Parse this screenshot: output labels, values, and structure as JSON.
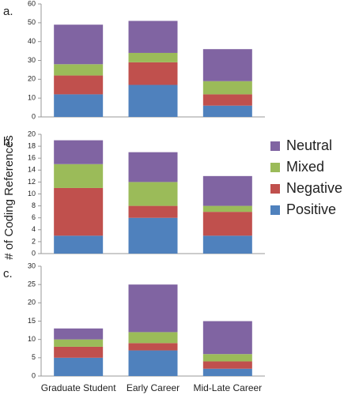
{
  "chart_data": {
    "type": "bar",
    "stacked": true,
    "ylabel": "# of Coding References",
    "categories": [
      "Graduate Student",
      "Early Career",
      "Mid-Late Career"
    ],
    "legend": "right",
    "series": [
      {
        "name": "Positive",
        "color": "#4f81bd"
      },
      {
        "name": "Negative",
        "color": "#c0504d"
      },
      {
        "name": "Mixed",
        "color": "#9bbb59"
      },
      {
        "name": "Neutral",
        "color": "#8064a2"
      }
    ],
    "panels": [
      {
        "label": "a.",
        "ylim": [
          0,
          60
        ],
        "yticks": [
          0,
          10,
          20,
          30,
          40,
          50,
          60
        ],
        "values": [
          [
            12,
            17,
            6
          ],
          [
            10,
            12,
            6
          ],
          [
            6,
            5,
            7
          ],
          [
            21,
            17,
            17
          ]
        ]
      },
      {
        "label": "b.",
        "ylim": [
          0,
          20
        ],
        "yticks": [
          0,
          2,
          4,
          6,
          8,
          10,
          12,
          14,
          16,
          18,
          20
        ],
        "values": [
          [
            3,
            6,
            3
          ],
          [
            8,
            2,
            4
          ],
          [
            4,
            4,
            1
          ],
          [
            4,
            5,
            5
          ]
        ]
      },
      {
        "label": "c.",
        "ylim": [
          0,
          30
        ],
        "yticks": [
          0,
          5,
          10,
          15,
          20,
          25,
          30
        ],
        "values": [
          [
            5,
            7,
            2
          ],
          [
            3,
            2,
            2
          ],
          [
            2,
            3,
            2
          ],
          [
            3,
            13,
            9
          ]
        ]
      }
    ]
  }
}
